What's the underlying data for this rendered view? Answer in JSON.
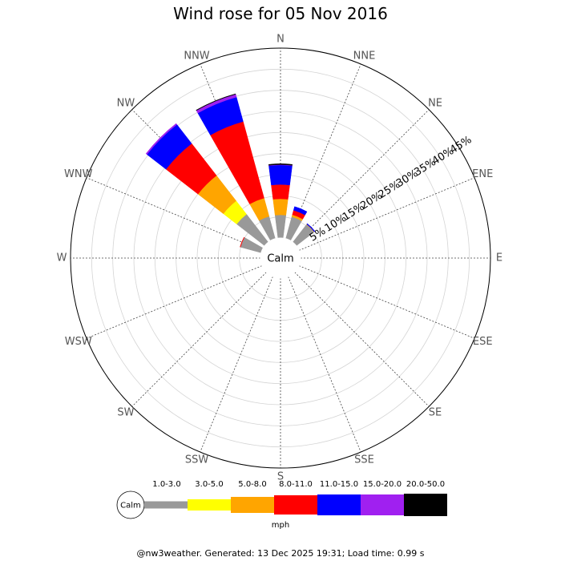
{
  "chart_data": {
    "type": "windrose",
    "title": "Wind rose for 05 Nov 2016",
    "directions": [
      "N",
      "NNE",
      "NE",
      "ENE",
      "E",
      "ESE",
      "SE",
      "SSE",
      "S",
      "SSW",
      "SW",
      "WSW",
      "W",
      "WNW",
      "NW",
      "NNW"
    ],
    "radial_ticks": [
      "5%",
      "10%",
      "15%",
      "20%",
      "25%",
      "30%",
      "35%",
      "40%",
      "45%"
    ],
    "radial_max_percent": 45,
    "calm_label": "Calm",
    "unit": "mph",
    "bins": [
      {
        "label": "1.0-3.0",
        "color": "#999999"
      },
      {
        "label": "3.0-5.0",
        "color": "#ffff00"
      },
      {
        "label": "5.0-8.0",
        "color": "#ffa500"
      },
      {
        "label": "8.0-11.0",
        "color": "#ff0000"
      },
      {
        "label": "11.0-15.0",
        "color": "#0000ff"
      },
      {
        "label": "15.0-20.0",
        "color": "#a020f0"
      },
      {
        "label": "20.0-50.0",
        "color": "#000000"
      }
    ],
    "stacks": [
      {
        "direction": "N",
        "cum_percent": [
          5.5,
          5.5,
          9.3,
          12.7,
          17.3,
          17.4,
          17.6
        ]
      },
      {
        "direction": "NNE",
        "cum_percent": [
          5.4,
          5.4,
          5.9,
          7.0,
          7.9,
          7.9,
          7.9
        ]
      },
      {
        "direction": "NE",
        "cum_percent": [
          5.3,
          5.3,
          5.4,
          5.4,
          5.6,
          5.6,
          5.6
        ]
      },
      {
        "direction": "WNW",
        "cum_percent": [
          5.1,
          5.1,
          5.1,
          5.2,
          5.2,
          5.2,
          5.2
        ]
      },
      {
        "direction": "NW",
        "cum_percent": [
          8.4,
          12.4,
          20.0,
          29.6,
          35.3,
          35.6,
          35.6
        ]
      },
      {
        "direction": "NNW",
        "cum_percent": [
          5.5,
          5.5,
          10.0,
          28.8,
          34.8,
          35.5,
          35.6
        ]
      }
    ]
  },
  "footer": "@nw3weather. Generated: 13 Dec 2025 19:31; Load time: 0.99 s"
}
